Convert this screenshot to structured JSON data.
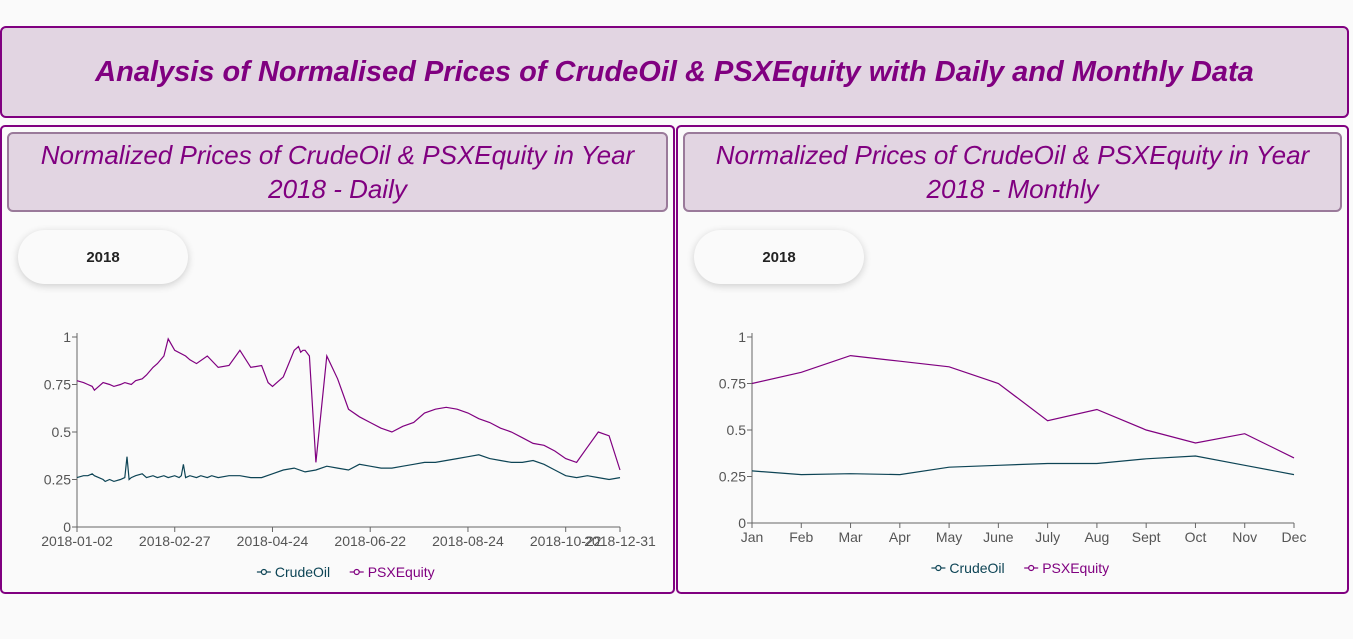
{
  "page": {
    "title": "Analysis of Normalised Prices of CrudeOil & PSXEquity with Daily and Monthly Data"
  },
  "colors": {
    "crude": "#0d4455",
    "psx": "#800080",
    "accent": "#800080",
    "title_bg": "#e2d5e2"
  },
  "panels": {
    "daily": {
      "title": "Normalized Prices of CrudeOil & PSXEquity in Year 2018 - Daily",
      "year_option": "2018"
    },
    "monthly": {
      "title": "Normalized Prices of CrudeOil & PSXEquity in Year 2018 - Monthly",
      "year_option": "2018"
    }
  },
  "chart_data": [
    {
      "type": "line",
      "x_ticks": [
        "2018-01-02",
        "2018-02-27",
        "2018-04-24",
        "2018-06-22",
        "2018-08-24",
        "2018-10-22",
        "2018-12-31"
      ],
      "y_ticks": [
        "0",
        "0.25",
        "0.5",
        "0.75",
        "1"
      ],
      "ylim": [
        0,
        1
      ],
      "legend_position": "bottom",
      "grid": false,
      "series": [
        {
          "name": "CrudeOil",
          "x": [
            0,
            3,
            5,
            7,
            8,
            10,
            12,
            13,
            15,
            17,
            20,
            22,
            23,
            24,
            25,
            27,
            30,
            32,
            35,
            37,
            40,
            42,
            45,
            47,
            48,
            49,
            50,
            52,
            55,
            57,
            60,
            62,
            65,
            70,
            75,
            80,
            85,
            90,
            95,
            100,
            105,
            110,
            115,
            120,
            125,
            130,
            135,
            140,
            145,
            150,
            155,
            160,
            165,
            170,
            175,
            180,
            185,
            190,
            195,
            200,
            205,
            210,
            215,
            220,
            225,
            230,
            235,
            240,
            245,
            250
          ],
          "values": [
            0.26,
            0.27,
            0.27,
            0.28,
            0.27,
            0.26,
            0.25,
            0.24,
            0.25,
            0.24,
            0.25,
            0.26,
            0.37,
            0.25,
            0.26,
            0.27,
            0.28,
            0.26,
            0.27,
            0.26,
            0.27,
            0.26,
            0.27,
            0.26,
            0.27,
            0.33,
            0.26,
            0.27,
            0.26,
            0.27,
            0.26,
            0.27,
            0.26,
            0.27,
            0.27,
            0.26,
            0.26,
            0.28,
            0.3,
            0.31,
            0.29,
            0.3,
            0.32,
            0.31,
            0.3,
            0.33,
            0.32,
            0.31,
            0.31,
            0.32,
            0.33,
            0.34,
            0.34,
            0.35,
            0.36,
            0.37,
            0.38,
            0.36,
            0.35,
            0.34,
            0.34,
            0.35,
            0.33,
            0.3,
            0.27,
            0.26,
            0.27,
            0.26,
            0.25,
            0.26
          ]
        },
        {
          "name": "PSXEquity",
          "x": [
            0,
            3,
            5,
            7,
            8,
            10,
            12,
            15,
            17,
            20,
            22,
            25,
            27,
            30,
            32,
            35,
            37,
            40,
            42,
            45,
            50,
            52,
            55,
            60,
            65,
            70,
            75,
            80,
            85,
            88,
            90,
            95,
            100,
            102,
            103,
            104,
            105,
            107,
            110,
            115,
            120,
            125,
            130,
            135,
            140,
            145,
            150,
            155,
            160,
            165,
            170,
            175,
            180,
            185,
            190,
            195,
            200,
            205,
            210,
            215,
            220,
            225,
            230,
            235,
            240,
            245,
            250
          ],
          "values": [
            0.77,
            0.76,
            0.75,
            0.74,
            0.72,
            0.74,
            0.76,
            0.75,
            0.74,
            0.75,
            0.76,
            0.75,
            0.77,
            0.78,
            0.8,
            0.84,
            0.86,
            0.9,
            0.99,
            0.93,
            0.9,
            0.88,
            0.86,
            0.9,
            0.84,
            0.85,
            0.93,
            0.84,
            0.85,
            0.76,
            0.74,
            0.79,
            0.93,
            0.95,
            0.92,
            0.93,
            0.93,
            0.9,
            0.34,
            0.9,
            0.78,
            0.62,
            0.58,
            0.55,
            0.52,
            0.5,
            0.53,
            0.55,
            0.6,
            0.62,
            0.63,
            0.62,
            0.6,
            0.57,
            0.55,
            0.52,
            0.5,
            0.47,
            0.44,
            0.43,
            0.4,
            0.36,
            0.34,
            0.42,
            0.5,
            0.48,
            0.3
          ],
          "_note_ignore": ""
        }
      ]
    },
    {
      "type": "line",
      "categories": [
        "Jan",
        "Feb",
        "Mar",
        "Apr",
        "May",
        "June",
        "July",
        "Aug",
        "Sept",
        "Oct",
        "Nov",
        "Dec"
      ],
      "y_ticks": [
        "0",
        "0.25",
        "0.5",
        "0.75",
        "1"
      ],
      "ylim": [
        0,
        1
      ],
      "legend_position": "bottom",
      "grid": false,
      "series": [
        {
          "name": "CrudeOil",
          "values": [
            0.28,
            0.26,
            0.265,
            0.26,
            0.3,
            0.31,
            0.32,
            0.32,
            0.345,
            0.36,
            0.31,
            0.26
          ]
        },
        {
          "name": "PSXEquity",
          "values": [
            0.75,
            0.81,
            0.9,
            0.87,
            0.84,
            0.75,
            0.55,
            0.61,
            0.5,
            0.43,
            0.48,
            0.35
          ]
        }
      ]
    }
  ]
}
